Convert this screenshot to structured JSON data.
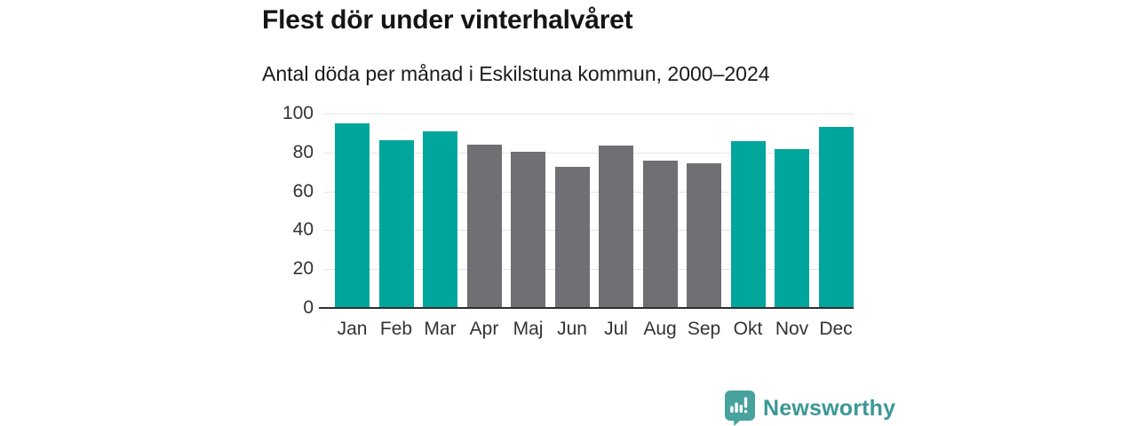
{
  "header": {
    "title": "Flest dör under vinterhalvåret",
    "subtitle": "Antal döda per månad i Eskilstuna kommun, 2000–2024"
  },
  "chart_data": {
    "type": "bar",
    "title": "Flest dör under vinterhalvåret",
    "subtitle": "Antal döda per månad i Eskilstuna kommun, 2000–2024",
    "categories": [
      "Jan",
      "Feb",
      "Mar",
      "Apr",
      "Maj",
      "Jun",
      "Jul",
      "Aug",
      "Sep",
      "Okt",
      "Nov",
      "Dec"
    ],
    "values": [
      94.5,
      86,
      90.5,
      83.5,
      80,
      72,
      83,
      75.5,
      74,
      85.5,
      81.5,
      92.5
    ],
    "highlighted": [
      true,
      true,
      true,
      false,
      false,
      false,
      false,
      false,
      false,
      true,
      true,
      true
    ],
    "xlabel": "",
    "ylabel": "",
    "ylim": [
      0,
      100
    ],
    "yticks": [
      0,
      20,
      40,
      60,
      80,
      100
    ],
    "grid": true,
    "legend_position": "none",
    "colors": {
      "highlight": "#00a69c",
      "base": "#6f6f74",
      "gridline": "#e4e4e4",
      "axis_line": "#2f2f2f",
      "tick_label": "#333333"
    }
  },
  "footer": {
    "brand": "Newsworthy",
    "brand_color": "#3a9894",
    "logo_color": "#47a29d"
  }
}
